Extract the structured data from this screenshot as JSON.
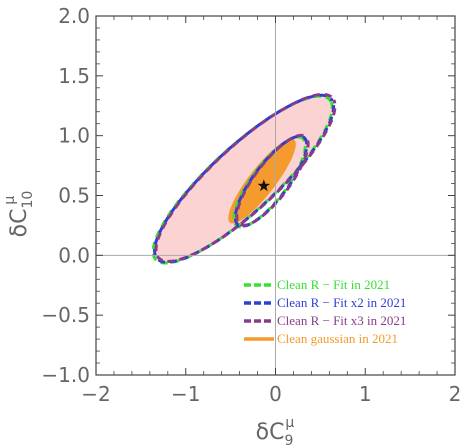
{
  "chart_data": {
    "type": "contour",
    "xlabel": {
      "main": "δC",
      "sub": "9",
      "sup": "μ"
    },
    "ylabel": {
      "main": "δC",
      "sub": "10",
      "sup": "μ"
    },
    "xlim": [
      -2,
      2
    ],
    "ylim": [
      -1,
      2
    ],
    "x_ticks": [
      -2,
      -1,
      0,
      1,
      2
    ],
    "x_tick_labels": [
      "−2",
      "−1",
      "0",
      "1",
      "2"
    ],
    "y_ticks": [
      -1.0,
      -0.5,
      0.0,
      0.5,
      1.0,
      1.5,
      2.0
    ],
    "y_tick_labels": [
      "−1.0",
      "−0.5",
      "0.0",
      "0.5",
      "1.0",
      "1.5",
      "2.0"
    ],
    "reference_lines": {
      "x": 0,
      "y": 0
    },
    "best_fit": {
      "x": -0.13,
      "y": 0.58,
      "marker": "star"
    },
    "regions": [
      {
        "level": "outer",
        "fill": "#fbd3d3",
        "center": [
          -0.35,
          0.64
        ],
        "a": 1.18,
        "b": 0.3,
        "angle_deg": 33.5
      },
      {
        "level": "inner",
        "fill": "#f59a2c",
        "center": [
          -0.15,
          0.62
        ],
        "a": 0.5,
        "b": 0.13,
        "angle_deg": 43
      }
    ],
    "contours": [
      {
        "name": "Clean R − Fit in 2021",
        "color": "#33e233",
        "center": [
          -0.35,
          0.64
        ],
        "a": 1.18,
        "b": 0.3,
        "angle_deg": 33.5,
        "inner": {
          "center": [
            -0.05,
            0.62
          ],
          "a": 0.52,
          "b": 0.17,
          "angle_deg": 43
        }
      },
      {
        "name": "Clean R − Fit x2 in 2021",
        "color": "#2e3dd6",
        "center": [
          -0.35,
          0.64
        ],
        "a": 1.18,
        "b": 0.3,
        "angle_deg": 33.5,
        "inner": {
          "center": [
            -0.05,
            0.62
          ],
          "a": 0.52,
          "b": 0.17,
          "angle_deg": 43
        }
      },
      {
        "name": "Clean R − Fit x3 in 2021",
        "color": "#8a3a8a",
        "center": [
          -0.35,
          0.64
        ],
        "a": 1.18,
        "b": 0.3,
        "angle_deg": 33.5,
        "inner": {
          "center": [
            -0.05,
            0.62
          ],
          "a": 0.52,
          "b": 0.17,
          "angle_deg": 43
        }
      }
    ],
    "legend": {
      "position": "bottom-right",
      "entries": [
        {
          "label": "Clean R − Fit in 2021",
          "color": "#33e233",
          "style": "dashed"
        },
        {
          "label": "Clean R − Fit x2 in 2021",
          "color": "#2e3dd6",
          "style": "dashed"
        },
        {
          "label": "Clean R − Fit x3 in 2021",
          "color": "#8a3a8a",
          "style": "dashed"
        },
        {
          "label": "Clean gaussian in 2021",
          "color": "#f59a2c",
          "style": "solid"
        }
      ]
    },
    "grid": false
  }
}
